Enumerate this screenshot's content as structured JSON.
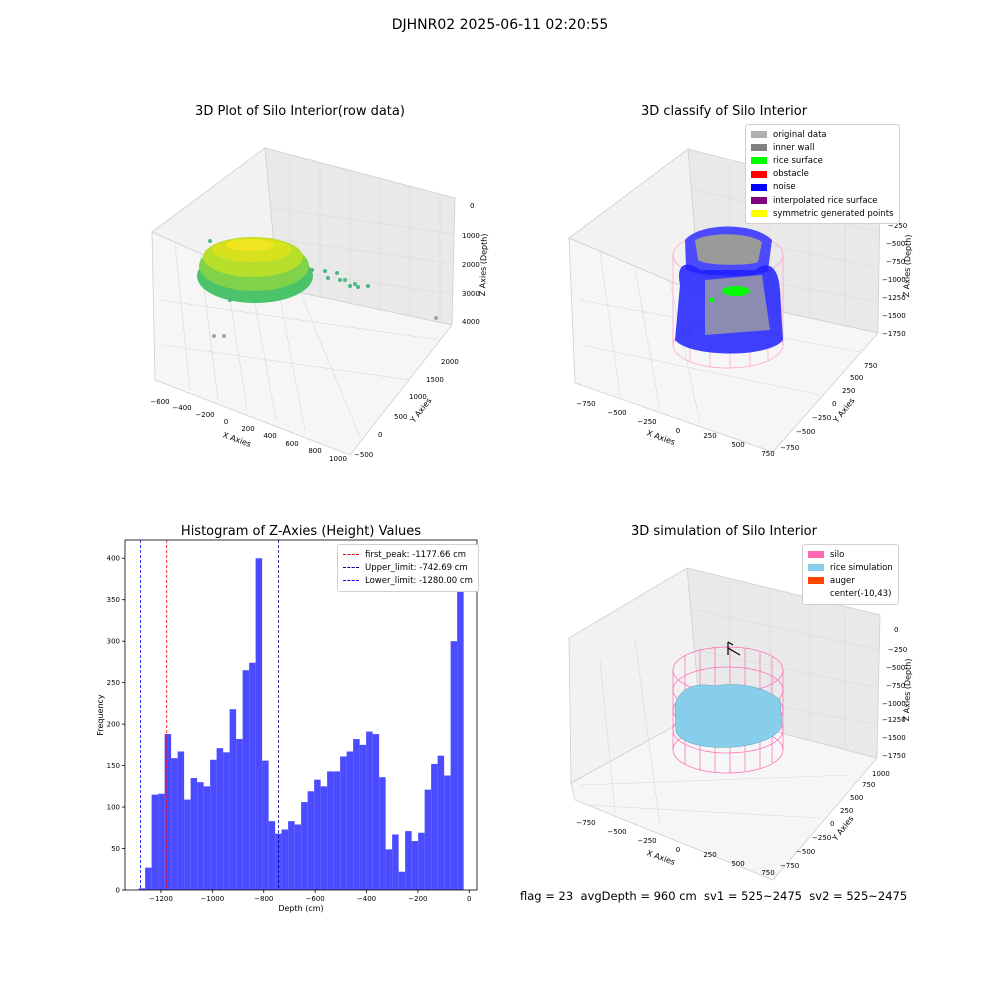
{
  "header": {
    "title": "DJHNR02 2025-06-11 02:20:55"
  },
  "colors": {
    "grey_light": "#b0b0b0",
    "grey_dark": "#808080",
    "green": "#00ff00",
    "red": "#ff0000",
    "blue": "#0000ff",
    "purple": "#800080",
    "yellow": "#ffff00",
    "silo_pink": "#ff69b4",
    "rice_blue": "#87ceeb",
    "auger_orange": "#ff4500",
    "hist_blue": "#4b4bff"
  },
  "chart_data": [
    {
      "type": "scatter",
      "subtype": "3d",
      "title": "3D Plot of Silo Interior(row data)",
      "xlabel": "X Axies",
      "ylabel": "Y Axies",
      "zlabel": "Z Axies (Depth)",
      "xticks": [
        "−600",
        "−400",
        "−200",
        "0",
        "200",
        "400",
        "600",
        "800",
        "1000"
      ],
      "yticks": [
        "−500",
        "0",
        "500",
        "1000",
        "1500",
        "2000"
      ],
      "zticks": [
        "0",
        "1000",
        "2000",
        "3000",
        "4000"
      ],
      "grid": true
    },
    {
      "type": "scatter",
      "subtype": "3d",
      "title": "3D classify of Silo Interior",
      "xlabel": "X Axies",
      "ylabel": "Y Axies",
      "zlabel": "Z Axies (Depth)",
      "xticks": [
        "−750",
        "−500",
        "−250",
        "0",
        "250",
        "500",
        "750"
      ],
      "yticks": [
        "−750",
        "−500",
        "−250",
        "0",
        "250",
        "500",
        "750"
      ],
      "zticks": [
        "0",
        "−250",
        "−500",
        "−750",
        "−1000",
        "−1250",
        "−1500",
        "−1750"
      ],
      "legend": [
        {
          "label": "original data",
          "color": "#b0b0b0"
        },
        {
          "label": "inner wall",
          "color": "#808080"
        },
        {
          "label": "rice surface",
          "color": "#00ff00"
        },
        {
          "label": "obstacle",
          "color": "#ff0000"
        },
        {
          "label": "noise",
          "color": "#0000ff"
        },
        {
          "label": "interpolated rice surface",
          "color": "#800080"
        },
        {
          "label": "symmetric generated points",
          "color": "#ffff00"
        }
      ],
      "legend_position": "top-right",
      "grid": true
    },
    {
      "type": "bar",
      "subtype": "histogram",
      "title": "Histogram of Z-Axies (Height) Values",
      "xlabel": "Depth (cm)",
      "ylabel": "Frequency",
      "xlim": [
        -1340,
        30
      ],
      "ylim": [
        0,
        422
      ],
      "xticks": [
        -1200,
        -1000,
        -800,
        -600,
        -400,
        -200,
        0
      ],
      "yticks": [
        0,
        50,
        100,
        150,
        200,
        250,
        300,
        350,
        400
      ],
      "bin_start": -1287,
      "bin_width": 25.3,
      "values": [
        2,
        27,
        115,
        116,
        188,
        159,
        167,
        109,
        135,
        130,
        125,
        157,
        171,
        166,
        218,
        182,
        265,
        274,
        400,
        156,
        83,
        68,
        73,
        83,
        79,
        106,
        119,
        133,
        125,
        143,
        143,
        161,
        167,
        182,
        175,
        191,
        188,
        136,
        49,
        67,
        22,
        71,
        59,
        69,
        121,
        152,
        162,
        138,
        300,
        400
      ],
      "lines": [
        {
          "label": "first_peak: -1177.66 cm",
          "x": -1177.66,
          "color": "#ff0000"
        },
        {
          "label": "Upper_limit: -742.69 cm",
          "x": -742.69,
          "color": "#00008b"
        },
        {
          "label": "Lower_limit: -1280.00 cm",
          "x": -1280.0,
          "color": "#0000ff"
        }
      ],
      "legend_position": "top-right",
      "grid": false
    },
    {
      "type": "scatter",
      "subtype": "3d-surface",
      "title": "3D simulation of Silo Interior",
      "xlabel": "X Axies",
      "ylabel": "Y Axies",
      "zlabel": "Z Axies (Depth)",
      "xticks": [
        "−750",
        "−500",
        "−250",
        "0",
        "250",
        "500",
        "750"
      ],
      "yticks": [
        "−750",
        "−500",
        "−250",
        "0",
        "250",
        "500",
        "750",
        "1000"
      ],
      "zticks": [
        "0",
        "−250",
        "−500",
        "−750",
        "−1000",
        "−1250",
        "−1500",
        "−1750"
      ],
      "legend": [
        {
          "label": "silo",
          "color": "#ff69b4"
        },
        {
          "label": "rice simulation",
          "color": "#87ceeb"
        },
        {
          "label": "auger",
          "color": "#ff4500"
        },
        {
          "label": "center(-10,43)",
          "color": "#ffffff"
        }
      ],
      "legend_position": "top-right",
      "grid": true
    }
  ],
  "footer": {
    "status": "flag = 23  avgDepth = 960 cm  sv1 = 525~2475  sv2 = 525~2475"
  }
}
